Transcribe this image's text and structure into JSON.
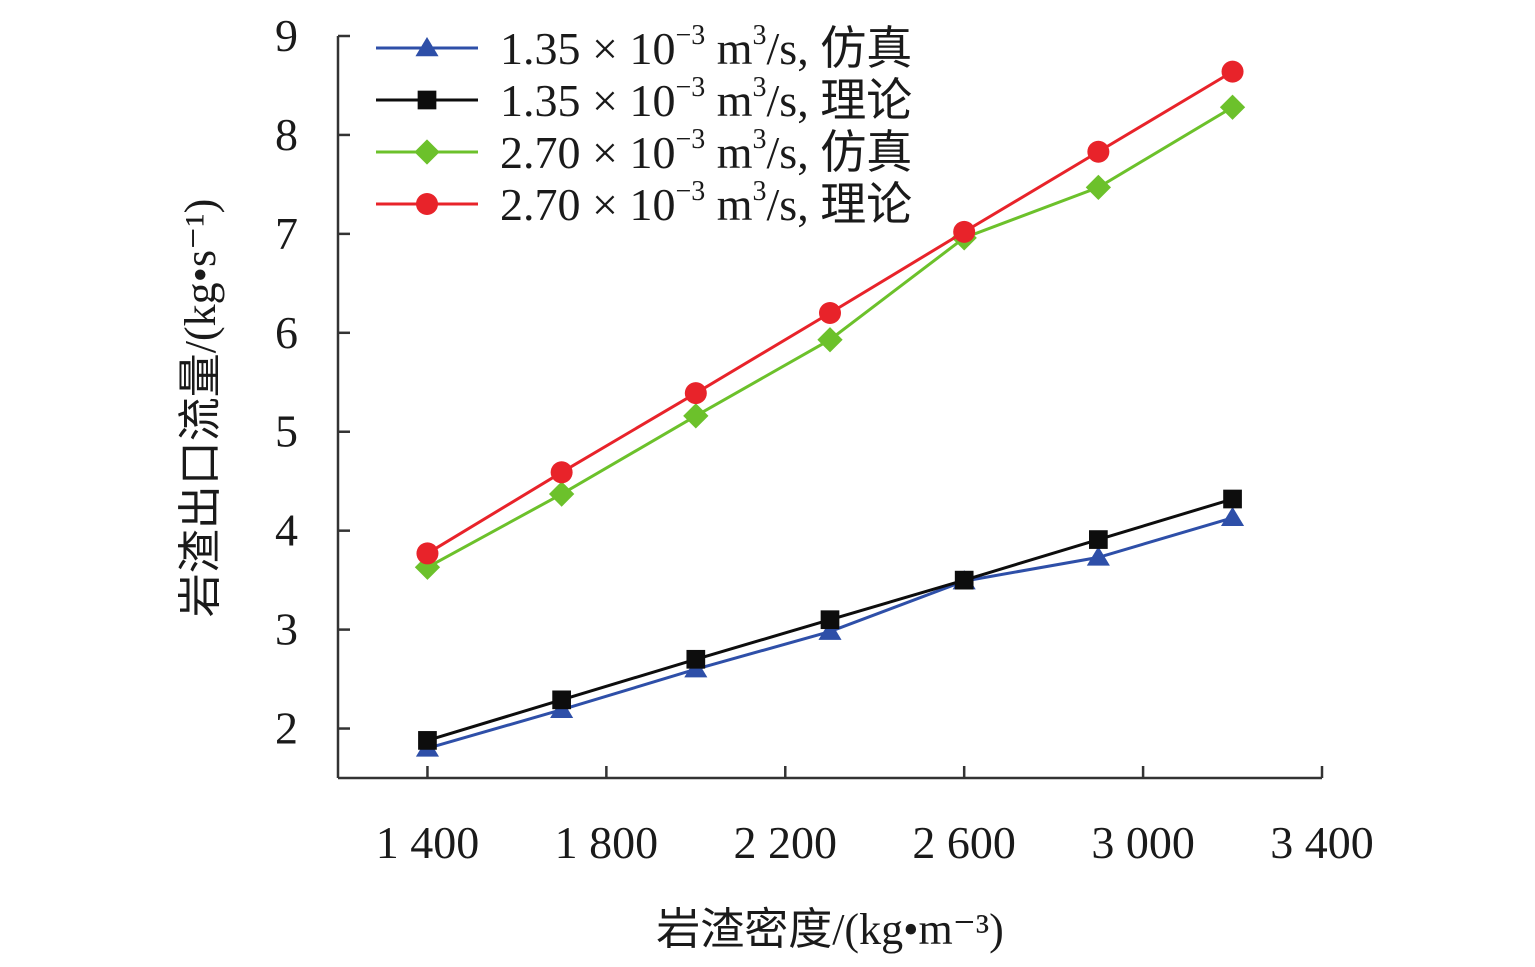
{
  "chart_data": {
    "type": "line",
    "title": "",
    "xlabel": "岩渣密度/(kg•m⁻³)",
    "ylabel": "岩渣出口流量/(kg•s⁻¹)",
    "xlim": [
      1200,
      3400
    ],
    "ylim": [
      1.5,
      9
    ],
    "x_ticks": [
      1400,
      1800,
      2200,
      2600,
      3000,
      3400
    ],
    "x_tick_labels": [
      "1 400",
      "1 800",
      "2 200",
      "2 600",
      "3 000",
      "3 400"
    ],
    "y_ticks": [
      2,
      3,
      4,
      5,
      6,
      7,
      8,
      9
    ],
    "y_tick_labels": [
      "2",
      "3",
      "4",
      "5",
      "6",
      "7",
      "8",
      "9"
    ],
    "x": [
      1400,
      1700,
      2000,
      2300,
      2600,
      2900,
      3200
    ],
    "legend_position": "top-left",
    "series": [
      {
        "name": "1.35 × 10⁻³ m³/s, 仿真",
        "label_base": "1.35 × 10",
        "label_exp": "−3",
        "label_unit": " m",
        "label_unit_exp": "3",
        "label_tail": "/s, 仿真",
        "color": "#2e4fa8",
        "marker": "triangle",
        "values": [
          1.8,
          2.19,
          2.6,
          2.98,
          3.49,
          3.73,
          4.13
        ]
      },
      {
        "name": "1.35 × 10⁻³ m³/s, 理论",
        "label_base": "1.35 × 10",
        "label_exp": "−3",
        "label_unit": " m",
        "label_unit_exp": "3",
        "label_tail": "/s, 理论",
        "color": "#0d0d0d",
        "marker": "square",
        "values": [
          1.88,
          2.29,
          2.7,
          3.1,
          3.5,
          3.91,
          4.32
        ]
      },
      {
        "name": "2.70 × 10⁻³ m³/s, 仿真",
        "label_base": "2.70 × 10",
        "label_exp": "−3",
        "label_unit": " m",
        "label_unit_exp": "3",
        "label_tail": "/s, 仿真",
        "color": "#6cc12b",
        "marker": "diamond",
        "values": [
          3.63,
          4.37,
          5.16,
          5.93,
          6.96,
          7.47,
          8.28
        ]
      },
      {
        "name": "2.70 × 10⁻³ m³/s, 理论",
        "label_base": "2.70 × 10",
        "label_exp": "−3",
        "label_unit": " m",
        "label_unit_exp": "3",
        "label_tail": "/s, 理论",
        "color": "#e8232a",
        "marker": "circle",
        "values": [
          3.77,
          4.59,
          5.39,
          6.2,
          7.02,
          7.83,
          8.64
        ]
      }
    ]
  }
}
